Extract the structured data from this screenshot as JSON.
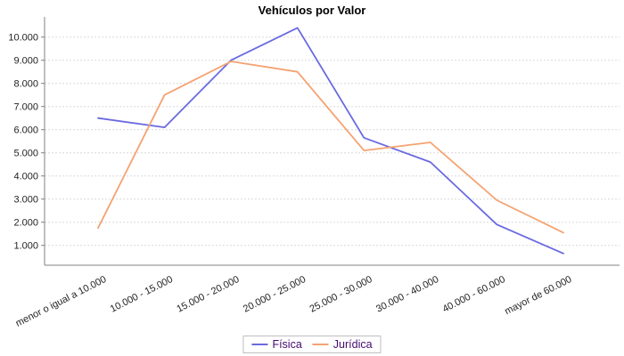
{
  "chart_data": {
    "type": "line",
    "title": "Vehículos por Valor",
    "categories": [
      "menor o igual a 10.000",
      "10.000 - 15.000",
      "15.000 - 20.000",
      "20.000 - 25.000",
      "25.000 - 30.000",
      "30.000 - 40.000",
      "40.000 - 60.000",
      "mayor de 60.000"
    ],
    "series": [
      {
        "name": "Física",
        "color": "#6a6ae0",
        "values": [
          6500,
          6100,
          9000,
          10400,
          5650,
          4600,
          1900,
          650
        ]
      },
      {
        "name": "Jurídica",
        "color": "#f5a271",
        "values": [
          1750,
          7500,
          8950,
          8500,
          5100,
          5450,
          2950,
          1550
        ]
      }
    ],
    "xlabel": "",
    "ylabel": "",
    "ylim": [
      0,
      10900
    ],
    "y_tick_values": [
      1000,
      2000,
      3000,
      4000,
      5000,
      6000,
      7000,
      8000,
      9000,
      10000
    ],
    "y_tick_labels": [
      "1.000",
      "2.000",
      "3.000",
      "4.000",
      "5.000",
      "6.000",
      "7.000",
      "8.000",
      "9.000",
      "10.000"
    ],
    "grid": "horizontal-dashed",
    "legend_position": "bottom-center",
    "colors": {
      "grid": "#d9d9d9",
      "axis": "#808080",
      "tick_label": "#222222",
      "title": "#000000",
      "legend_text": "#440a70",
      "legend_border": "#bfbfbf",
      "background": "#ffffff"
    }
  }
}
